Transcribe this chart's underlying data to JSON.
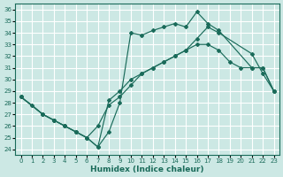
{
  "xlabel": "Humidex (Indice chaleur)",
  "background_color": "#cce8e4",
  "grid_color": "#ffffff",
  "line_color": "#1a6b5a",
  "xlim": [
    -0.5,
    23.5
  ],
  "ylim": [
    23.5,
    36.5
  ],
  "yticks": [
    24,
    25,
    26,
    27,
    28,
    29,
    30,
    31,
    32,
    33,
    34,
    35,
    36
  ],
  "xticks": [
    0,
    1,
    2,
    3,
    4,
    5,
    6,
    7,
    8,
    9,
    10,
    11,
    12,
    13,
    14,
    15,
    16,
    17,
    18,
    19,
    20,
    21,
    22,
    23
  ],
  "line1_x": [
    0,
    1,
    2,
    3,
    4,
    5,
    6,
    7,
    8,
    9,
    10,
    11,
    12,
    13,
    14,
    15,
    16,
    17,
    18,
    19,
    20,
    21,
    22,
    23
  ],
  "line1_y": [
    28.5,
    27.8,
    27.0,
    26.5,
    26.0,
    25.5,
    25.0,
    26.0,
    27.8,
    28.5,
    29.5,
    30.5,
    31.0,
    31.5,
    32.0,
    32.5,
    33.0,
    33.0,
    32.5,
    31.5,
    31.0,
    31.0,
    31.0,
    29.0
  ],
  "line2_x": [
    0,
    2,
    3,
    4,
    5,
    6,
    7,
    8,
    9,
    10,
    11,
    12,
    13,
    14,
    15,
    16,
    17,
    18,
    21,
    22,
    23
  ],
  "line2_y": [
    28.5,
    27.0,
    26.5,
    26.0,
    25.5,
    25.0,
    24.2,
    25.5,
    28.0,
    34.0,
    33.8,
    34.2,
    34.5,
    34.8,
    34.5,
    35.8,
    34.8,
    34.2,
    31.0,
    31.0,
    29.0
  ],
  "line3_x": [
    0,
    2,
    3,
    4,
    5,
    6,
    7,
    8,
    9,
    10,
    11,
    12,
    13,
    14,
    15,
    16,
    17,
    18,
    21,
    22,
    23
  ],
  "line3_y": [
    28.5,
    27.0,
    26.5,
    26.0,
    25.5,
    25.0,
    24.2,
    28.2,
    29.0,
    30.0,
    30.5,
    31.0,
    31.5,
    32.0,
    32.5,
    33.5,
    34.5,
    34.0,
    32.2,
    30.5,
    29.0
  ]
}
